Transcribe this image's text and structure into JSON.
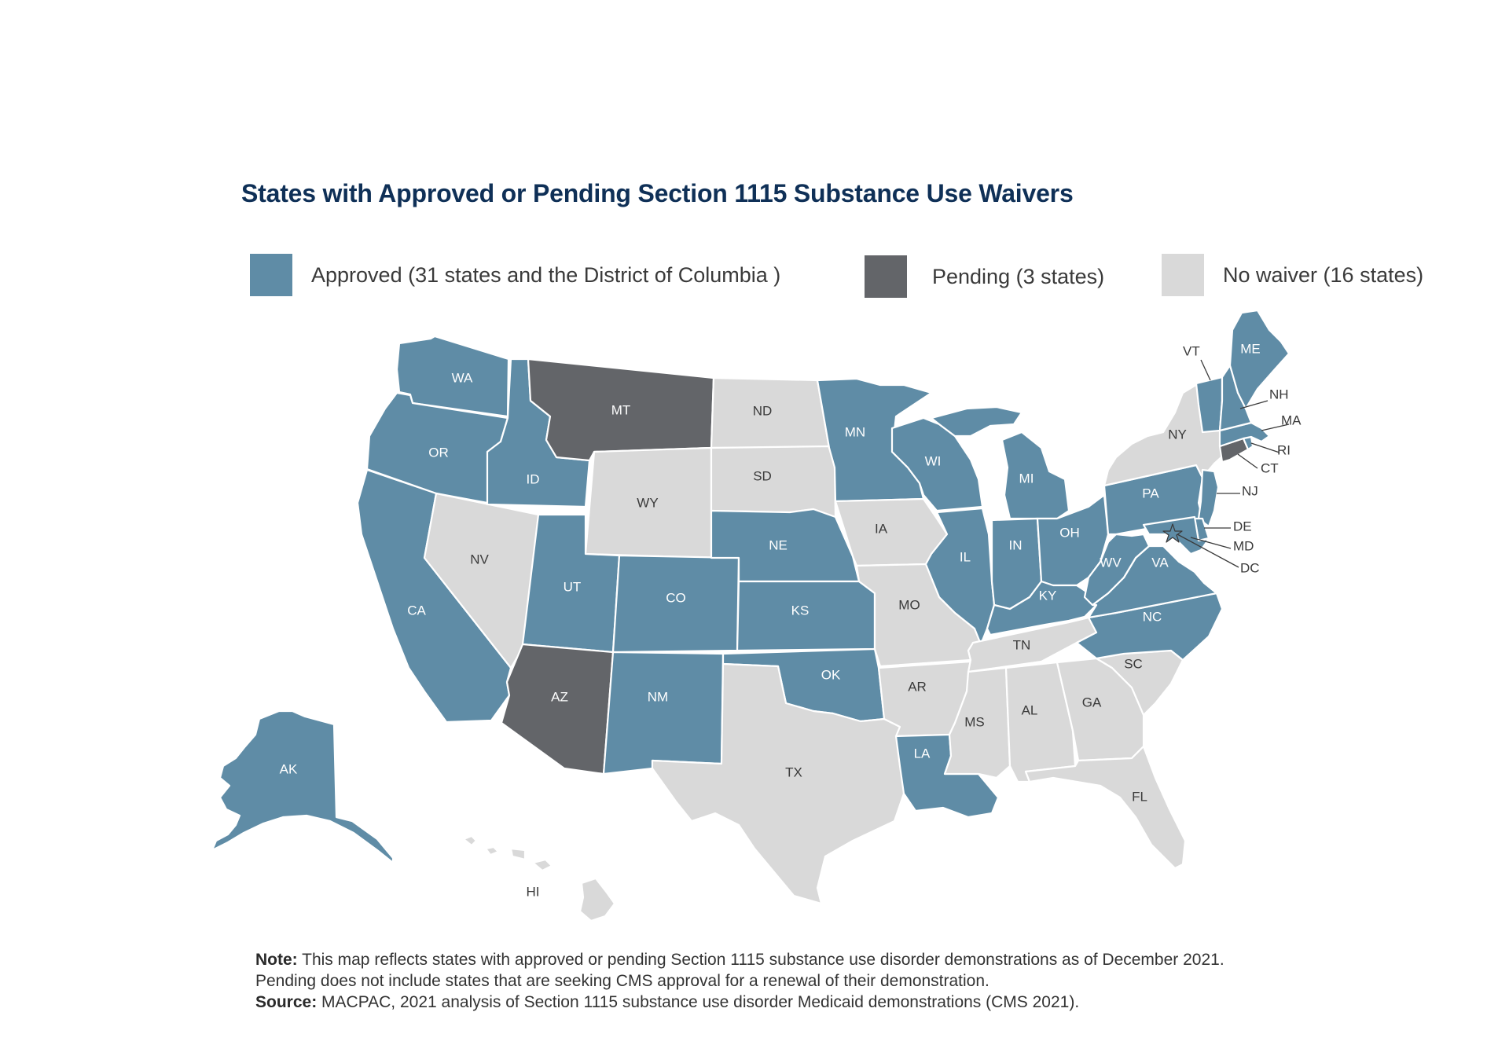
{
  "title": "States with Approved or Pending Section 1115 Substance Use Waivers",
  "legend": [
    {
      "key": "approved",
      "label": "Approved (31 states and the District of Columbia )",
      "color": "#5f8ca6"
    },
    {
      "key": "pending",
      "label": "Pending (3 states)",
      "color": "#636569"
    },
    {
      "key": "none",
      "label": "No waiver (16 states)",
      "color": "#d9d9d9"
    }
  ],
  "label_colors": {
    "approved": "#ffffff",
    "pending": "#ffffff",
    "none": "#3a3a3a"
  },
  "states": {
    "AK": "approved",
    "WA": "approved",
    "OR": "approved",
    "CA": "approved",
    "ID": "approved",
    "UT": "approved",
    "CO": "approved",
    "NM": "approved",
    "NE": "approved",
    "KS": "approved",
    "OK": "approved",
    "MN": "approved",
    "WI": "approved",
    "MI": "approved",
    "IL": "approved",
    "IN": "approved",
    "OH": "approved",
    "KY": "approved",
    "WV": "approved",
    "VA": "approved",
    "NC": "approved",
    "PA": "approved",
    "NJ": "approved",
    "DE": "approved",
    "MD": "approved",
    "DC": "approved",
    "VT": "approved",
    "NH": "approved",
    "MA": "approved",
    "RI": "approved",
    "ME": "approved",
    "LA": "approved",
    "MT": "pending",
    "AZ": "pending",
    "CT": "pending",
    "NV": "none",
    "WY": "none",
    "ND": "none",
    "SD": "none",
    "IA": "none",
    "MO": "none",
    "AR": "none",
    "TX": "none",
    "TN": "none",
    "MS": "none",
    "AL": "none",
    "GA": "none",
    "SC": "none",
    "FL": "none",
    "NY": "none",
    "HI": "none"
  },
  "notes": {
    "note_label": "Note:",
    "note_line1": " This map reflects states with approved or pending Section 1115 substance use disorder demonstrations as of December 2021.",
    "note_line2": "Pending does not include states that are seeking CMS approval for a renewal of their demonstration.",
    "source_label": "Source:",
    "source_text": " MACPAC, 2021 analysis of Section 1115 substance use disorder Medicaid demonstrations (CMS 2021)."
  }
}
